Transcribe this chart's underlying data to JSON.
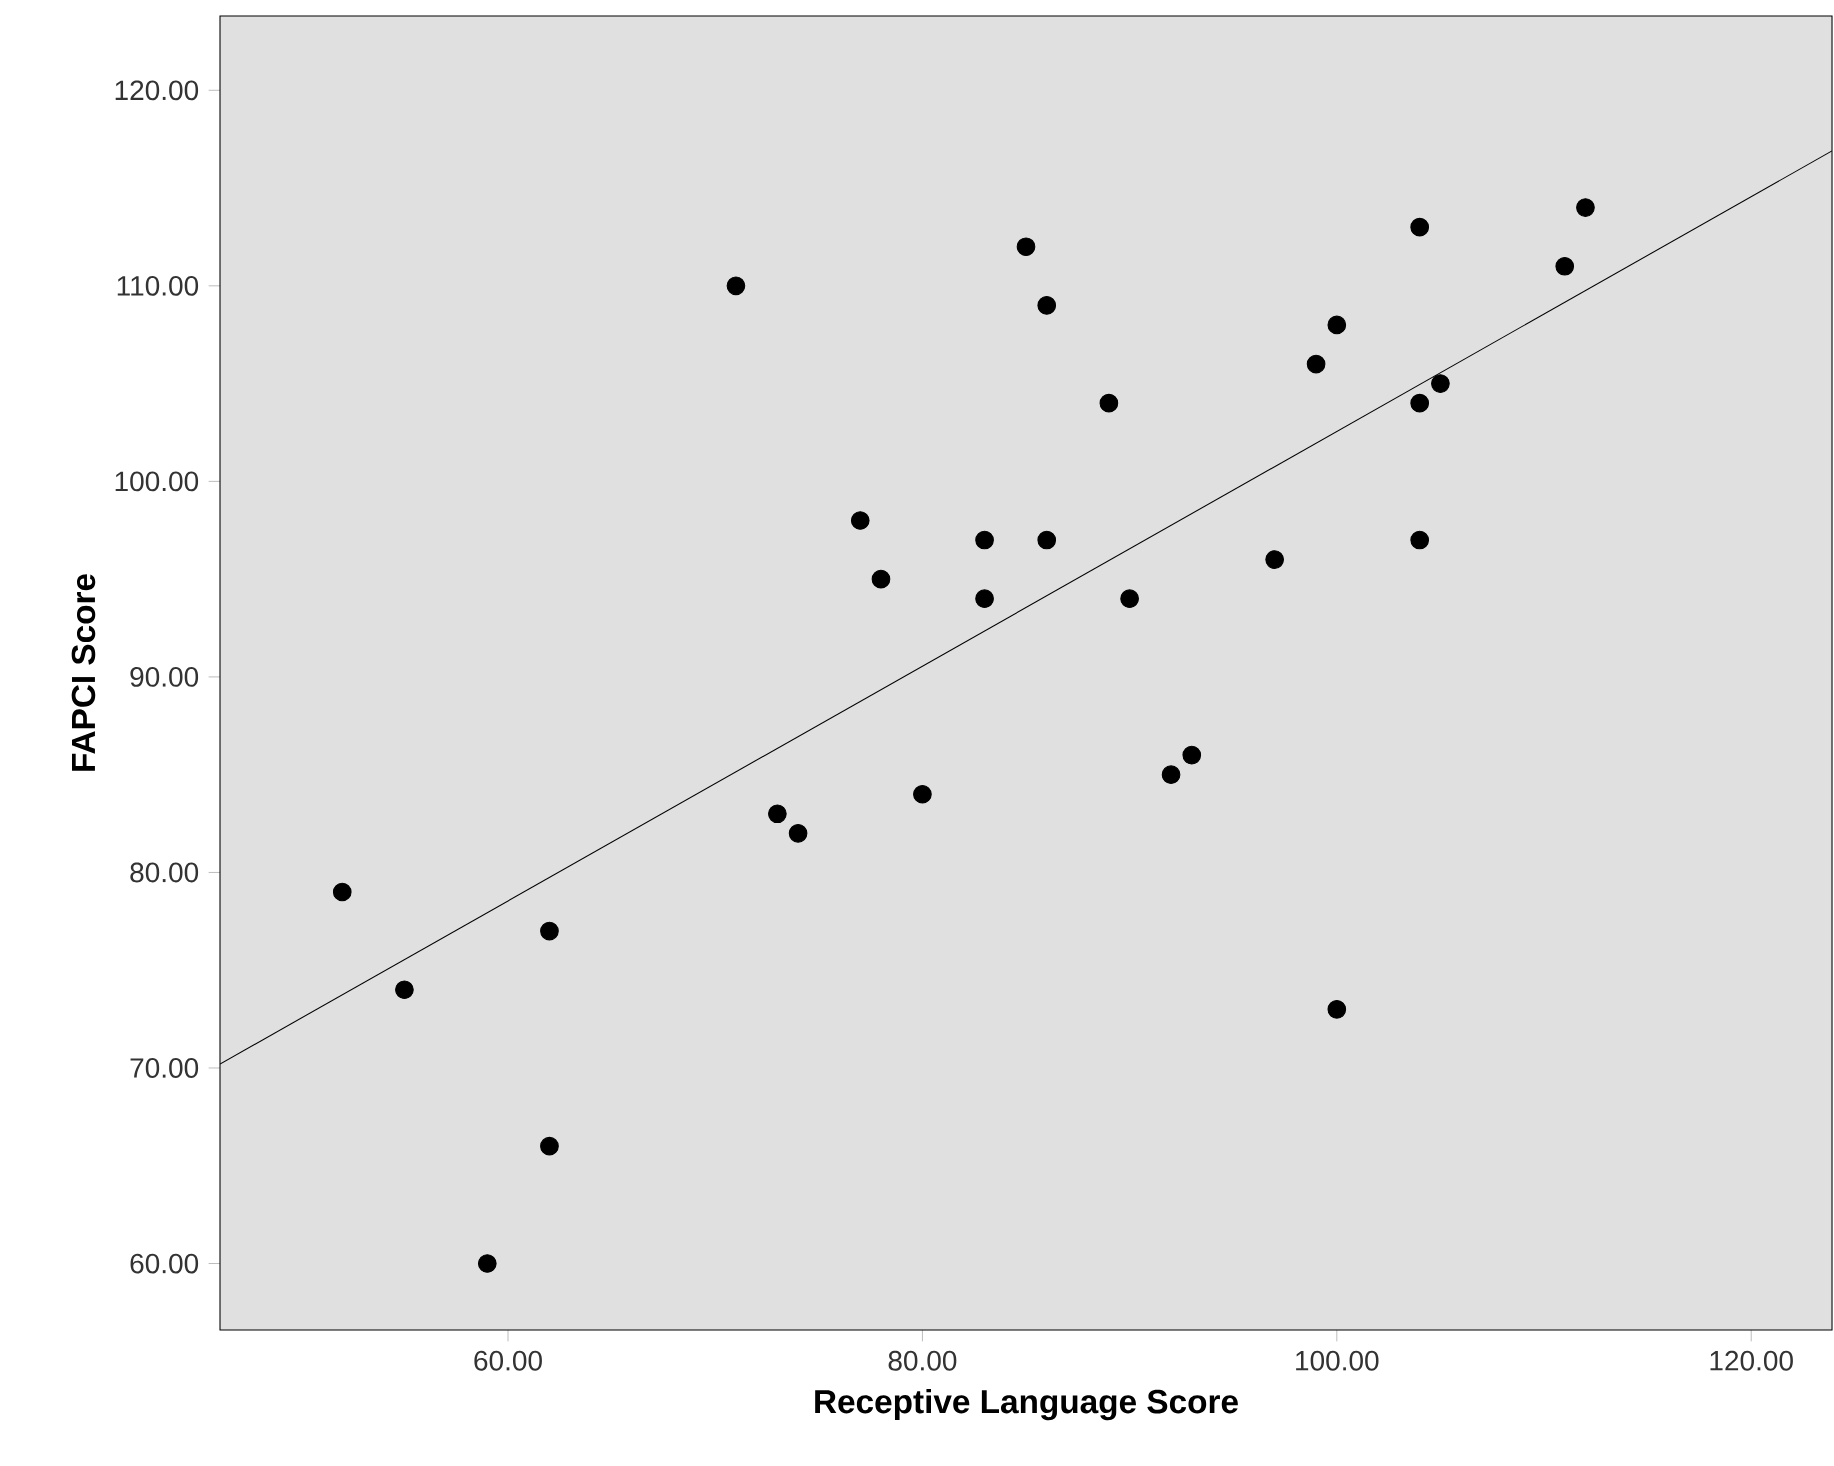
{
  "chart_data": {
    "type": "scatter",
    "xlabel": "Receptive Language Score",
    "ylabel": "FAPCI Score",
    "series": [
      {
        "color": "#000000",
        "marker": "circle",
        "x": [
          52,
          55,
          59,
          62,
          62,
          71,
          73,
          74,
          77,
          78,
          80,
          83,
          83,
          85,
          86,
          86,
          89,
          90,
          92,
          93,
          97,
          99,
          100,
          100,
          104,
          104,
          104,
          105,
          111,
          112
        ],
        "values": [
          79,
          74,
          60,
          77,
          66,
          110,
          83,
          82,
          98,
          95,
          84,
          97,
          94,
          112,
          109,
          97,
          104,
          94,
          85,
          86,
          96,
          106,
          108,
          73,
          113,
          104,
          97,
          105,
          111,
          114
        ]
      },
      {
        "type": "line",
        "color": "#000000",
        "marker": "none",
        "line_style": "solid",
        "x": [
          46.1,
          123.9
        ],
        "values": [
          70.2,
          116.9
        ]
      }
    ],
    "xlim": [
      46.1,
      123.9
    ],
    "ylim": [
      56.6,
      123.8
    ],
    "xticks": [
      {
        "value": 60,
        "label": "60.00"
      },
      {
        "value": 80,
        "label": "80.00"
      },
      {
        "value": 100,
        "label": "100.00"
      },
      {
        "value": 120,
        "label": "120.00"
      }
    ],
    "yticks": [
      {
        "value": 60,
        "label": "60.00"
      },
      {
        "value": 70,
        "label": "70.00"
      },
      {
        "value": 80,
        "label": "80.00"
      },
      {
        "value": 90,
        "label": "90.00"
      },
      {
        "value": 100,
        "label": "100.00"
      },
      {
        "value": 110,
        "label": "110.00"
      },
      {
        "value": 120,
        "label": "120.00"
      }
    ],
    "grid": false
  }
}
